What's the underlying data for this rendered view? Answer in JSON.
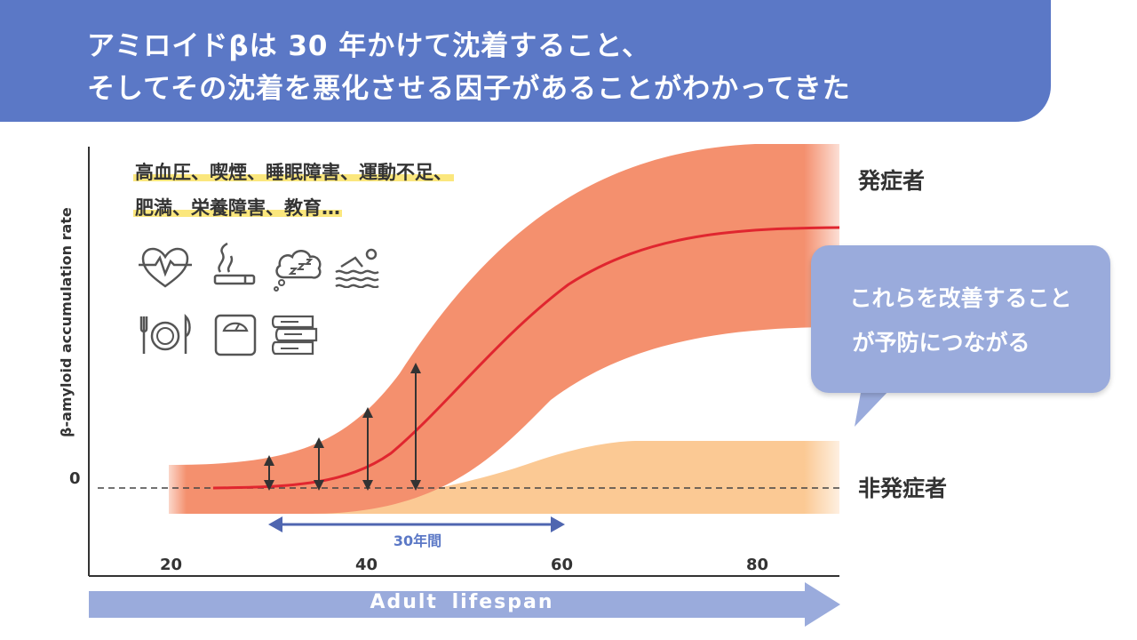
{
  "header": {
    "title_line_1": "アミロイドβは 30 年かけて沈着すること、",
    "title_line_2": "そしてその沈着を悪化させる因子があることがわかってきた"
  },
  "axes": {
    "y_label": "β-amyloid accumulation rate",
    "y_zero": "0",
    "x_ticks": [
      "20",
      "40",
      "60",
      "80"
    ],
    "x_label": "Adult lifespan"
  },
  "risk_factors": {
    "line_1": "高血圧、喫煙、睡眠障害、運動不足、",
    "line_2": "肥満、栄養障害、教育…",
    "icons": [
      "heart-rate-icon",
      "cigarette-icon",
      "sleep-cloud-icon",
      "swimmer-icon",
      "dining-icon",
      "weight-scale-icon",
      "books-icon"
    ]
  },
  "groups": {
    "patients": "発症者",
    "non_patients": "非発症者"
  },
  "period": {
    "label": "30年間"
  },
  "callout": {
    "line_1": "これらを改善すること",
    "line_2": "が予防につながる"
  },
  "colors": {
    "header": "#5b78c6",
    "patient_band": "#f4906e",
    "patient_curve": "#e0262f",
    "non_patient_band": "#fbc994",
    "callout": "#9aabdc",
    "arrow": "#4f66b0",
    "highlight": "#fbe77d"
  }
}
